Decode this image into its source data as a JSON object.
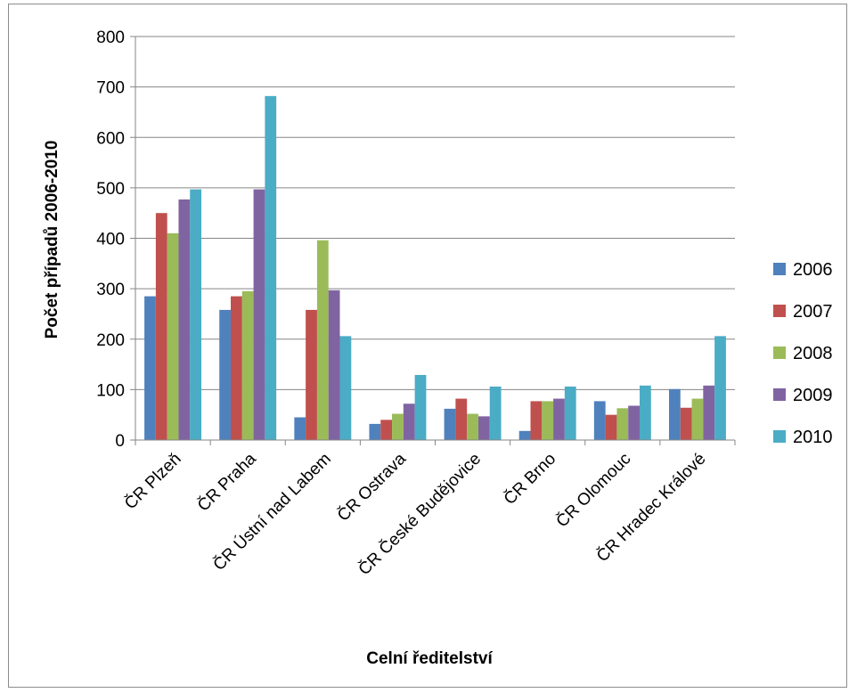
{
  "chart_data": {
    "type": "bar",
    "xlabel": "Celní ředitelství",
    "ylabel": "Počet případů 2006-2010",
    "ylim": [
      0,
      800
    ],
    "yticks": [
      0,
      100,
      200,
      300,
      400,
      500,
      600,
      700,
      800
    ],
    "grid": true,
    "legend_position": "right",
    "categories": [
      "ČR Plzeň",
      "ČR Praha",
      "ČR Ústní nad Labem",
      "ČR Ostrava",
      "ČR České Budějovice",
      "ČR Brno",
      "ČR Olomouc",
      "ČR Hradec Králové"
    ],
    "series": [
      {
        "name": "2006",
        "color": "#4f81bd",
        "values": [
          285,
          258,
          45,
          32,
          62,
          18,
          77,
          101
        ]
      },
      {
        "name": "2007",
        "color": "#c0504d",
        "values": [
          450,
          285,
          258,
          40,
          82,
          77,
          50,
          64
        ]
      },
      {
        "name": "2008",
        "color": "#9bbb59",
        "values": [
          410,
          295,
          396,
          52,
          52,
          77,
          63,
          82
        ]
      },
      {
        "name": "2009",
        "color": "#8064a2",
        "values": [
          477,
          497,
          297,
          72,
          47,
          82,
          68,
          108
        ]
      },
      {
        "name": "2010",
        "color": "#4bacc6",
        "values": [
          497,
          682,
          206,
          129,
          106,
          106,
          108,
          206
        ]
      }
    ]
  }
}
